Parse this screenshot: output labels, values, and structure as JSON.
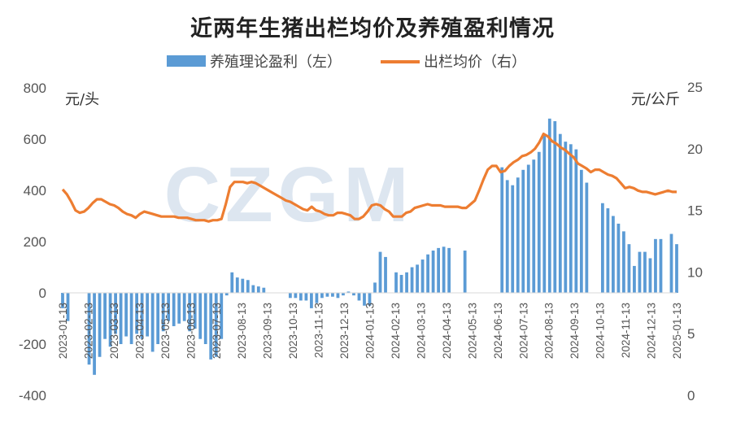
{
  "chart_data": {
    "type": "bar+line",
    "title": "近两年生猪出栏均价及养殖盈利情况",
    "watermark": "CZGM",
    "left_axis": {
      "unit": "元/头",
      "range": [
        -400,
        800
      ],
      "ticks": [
        "800",
        "600",
        "400",
        "200",
        "0",
        "-200",
        "-400"
      ]
    },
    "right_axis": {
      "unit": "元/公斤",
      "range": [
        0,
        25
      ],
      "ticks": [
        "25",
        "20",
        "15",
        "10",
        "5",
        "0"
      ]
    },
    "x_ticks": [
      "2023-01-13",
      "2023-02-13",
      "2023-03-13",
      "2023-04-13",
      "2023-05-13",
      "2023-06-13",
      "2023-07-13",
      "2023-08-13",
      "2023-09-13",
      "2023-10-13",
      "2023-11-13",
      "2023-12-13",
      "2024-01-13",
      "2024-02-13",
      "2024-03-13",
      "2024-04-13",
      "2024-05-13",
      "2024-06-13",
      "2024-07-13",
      "2024-08-13",
      "2024-09-13",
      "2024-10-13",
      "2024-11-13",
      "2024-12-13",
      "2025-01-13"
    ],
    "series": [
      {
        "name": "养殖理论盈利（左）",
        "type": "bar",
        "axis": "left",
        "color": "#5b9bd5",
        "values": [
          -60,
          -110,
          null,
          null,
          null,
          -280,
          -320,
          -250,
          -180,
          -210,
          -160,
          -200,
          -170,
          -200,
          -160,
          -180,
          -170,
          -230,
          -200,
          -150,
          -110,
          -130,
          -120,
          -110,
          -150,
          -140,
          -180,
          -200,
          -260,
          -250,
          -180,
          -10,
          80,
          60,
          55,
          50,
          30,
          25,
          20,
          null,
          null,
          null,
          null,
          -20,
          -20,
          -30,
          -30,
          -60,
          -40,
          -20,
          -15,
          -15,
          -20,
          -10,
          5,
          -10,
          -30,
          -50,
          -50,
          40,
          160,
          140,
          null,
          80,
          70,
          80,
          100,
          110,
          130,
          150,
          165,
          175,
          180,
          175,
          null,
          null,
          165,
          null,
          null,
          null,
          null,
          null,
          null,
          490,
          440,
          420,
          450,
          480,
          500,
          520,
          550,
          620,
          680,
          670,
          620,
          590,
          580,
          560,
          480,
          430,
          null,
          null,
          350,
          330,
          300,
          270,
          240,
          190,
          105,
          160,
          160,
          135,
          210,
          210,
          null,
          230,
          190
        ]
      },
      {
        "name": "出栏均价（右）",
        "type": "line",
        "axis": "right",
        "color": "#ed7d31",
        "values": [
          16.7,
          16.3,
          15.7,
          15.0,
          14.8,
          14.9,
          15.2,
          15.6,
          15.9,
          15.9,
          15.7,
          15.5,
          15.4,
          15.2,
          14.9,
          14.7,
          14.6,
          14.4,
          14.7,
          14.9,
          14.8,
          14.7,
          14.6,
          14.5,
          14.5,
          14.5,
          14.5,
          14.4,
          14.4,
          14.4,
          14.3,
          14.2,
          14.2,
          14.2,
          14.1,
          14.2,
          14.2,
          14.3,
          15.5,
          16.9,
          17.3,
          17.3,
          17.3,
          17.2,
          17.3,
          17.2,
          17.0,
          16.8,
          16.6,
          16.4,
          16.2,
          16.0,
          15.8,
          15.7,
          15.5,
          15.3,
          15.1,
          15.0,
          15.3,
          15.0,
          14.9,
          14.7,
          14.6,
          14.6,
          14.8,
          14.8,
          14.7,
          14.6,
          14.3,
          14.3,
          14.5,
          14.9,
          15.4,
          15.5,
          15.4,
          15.1,
          14.9,
          14.5,
          14.5,
          14.5,
          14.8,
          14.9,
          15.2,
          15.3,
          15.4,
          15.5,
          15.4,
          15.4,
          15.4,
          15.3,
          15.3,
          15.3,
          15.3,
          15.2,
          15.2,
          15.5,
          15.8,
          16.6,
          17.5,
          18.3,
          18.6,
          18.6,
          18.1,
          18.2,
          18.6,
          18.9,
          19.1,
          19.4,
          19.5,
          19.7,
          20.0,
          20.5,
          21.2,
          21.0,
          20.6,
          20.4,
          20.1,
          19.9,
          19.6,
          19.3,
          18.8,
          18.6,
          18.4,
          18.1,
          18.3,
          18.3,
          18.1,
          17.9,
          17.8,
          17.6,
          17.2,
          16.8,
          16.9,
          16.8,
          16.6,
          16.5,
          16.5,
          16.4,
          16.3,
          16.4,
          16.5,
          16.6,
          16.5,
          16.5
        ]
      }
    ],
    "legend_position": "top-center",
    "grid": false
  }
}
